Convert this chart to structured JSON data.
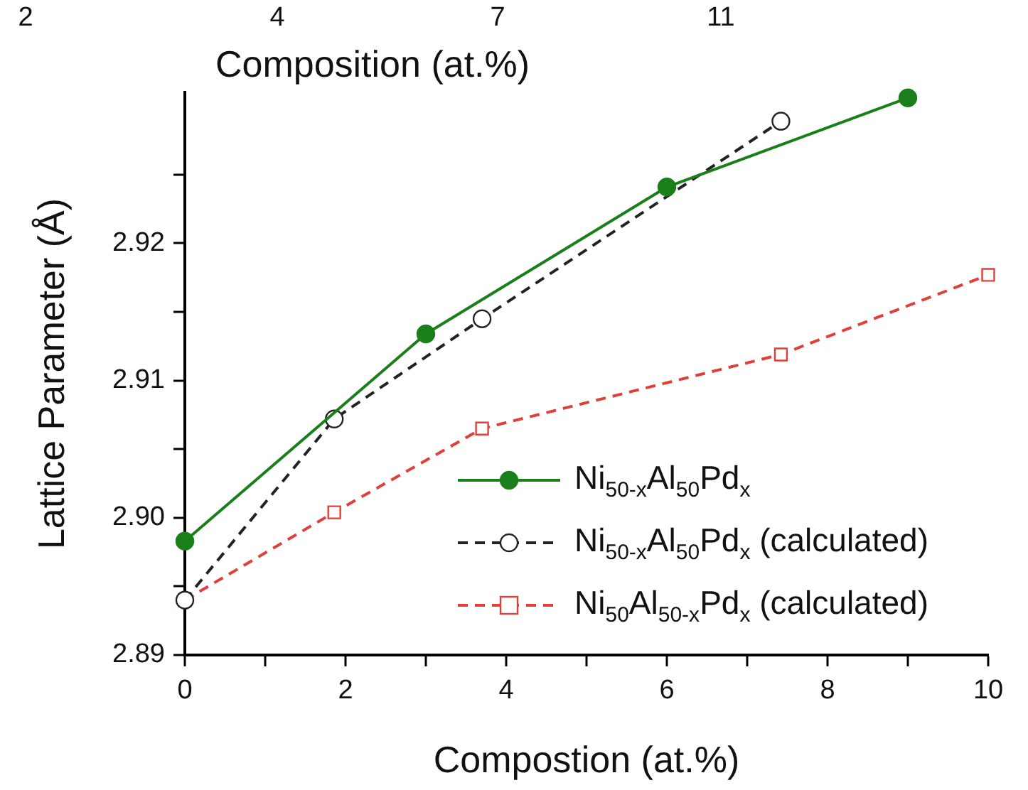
{
  "chart_data": {
    "type": "line",
    "xlabel": "Compostion (at.%)",
    "ylabel": "Lattice Parameter (Å)",
    "x2label": "Composition (at.%)",
    "xlim": [
      0,
      10
    ],
    "xticks": [
      0,
      {
        "value": 1,
        "label": null
      },
      2,
      {
        "value": 3,
        "label": null
      },
      4,
      {
        "value": 5,
        "label": null
      },
      6,
      {
        "value": 7,
        "label": null
      },
      8,
      {
        "value": 9,
        "label": null
      },
      10
    ],
    "ylim": [
      2.89,
      2.931
    ],
    "yticks": [
      {
        "value": 2.89,
        "label": "2.89"
      },
      {
        "value": 2.895,
        "label": null
      },
      {
        "value": 2.9,
        "label": "2.90"
      },
      {
        "value": 2.905,
        "label": null
      },
      {
        "value": 2.91,
        "label": "2.91"
      },
      {
        "value": 2.915,
        "label": null
      },
      {
        "value": 2.92,
        "label": "2.92"
      },
      {
        "value": 2.925,
        "label": null
      }
    ],
    "annotations": [
      "2",
      "4",
      "7",
      "11"
    ],
    "grid": false,
    "legend": "bottom right",
    "series": [
      {
        "name": "Ni$_{50-x}$Al$_{50}$Pd$_{x}$",
        "color": "#1a7f1a",
        "x": [
          0,
          3,
          6,
          9
        ],
        "values": [
          2.8983,
          2.9134,
          2.9241,
          2.9306
        ],
        "marker": "circle",
        "line_style": "solid"
      },
      {
        "name": "Ni$_{50-x}$Al$_{50}$Pd$_{x}$ (calculated)",
        "color": "#222222",
        "x": [
          0,
          1.86,
          3.7,
          7.42
        ],
        "values": [
          2.894,
          2.9072,
          2.9145,
          2.9289
        ],
        "marker": "circle",
        "line_style": "dashed"
      },
      {
        "name": "Ni$_{50}$Al$_{50-x}$Pd$_{x}$ (calculated)",
        "color": "#e0403a",
        "x": [
          0,
          1.86,
          3.7,
          7.42,
          10
        ],
        "values": [
          2.894,
          2.9004,
          2.9065,
          2.9119,
          2.9177
        ],
        "marker": "square",
        "line_style": "dashed"
      }
    ]
  }
}
